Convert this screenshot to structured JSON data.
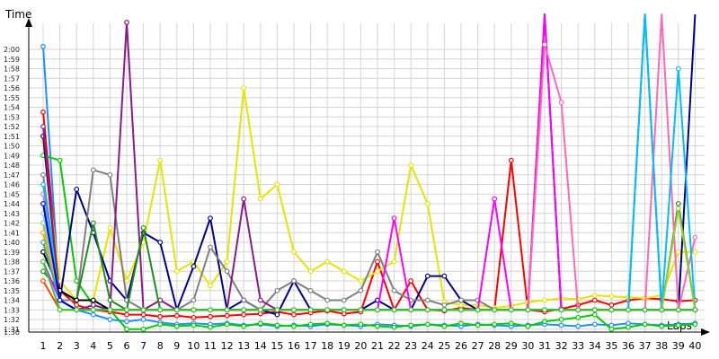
{
  "chart_data": {
    "type": "line",
    "title": "",
    "ylabel": "Time",
    "xlabel": "Laps",
    "y_tick_labels": [
      "1:30",
      "1:31",
      "1:32",
      "1:33",
      "1:34",
      "1:35",
      "1:36",
      "1:37",
      "1:38",
      "1:39",
      "1:40",
      "1:41",
      "1:42",
      "1:43",
      "1:44",
      "1:45",
      "1:46",
      "1:47",
      "1:48",
      "1:49",
      "1:50",
      "1:51",
      "1:52",
      "1:53",
      "1:54",
      "1:55",
      "1:56",
      "1:57",
      "1:58",
      "1:59",
      "2:00"
    ],
    "x_tick_labels": [
      "1",
      "2",
      "3",
      "4",
      "5",
      "6",
      "7",
      "8",
      "9",
      "10",
      "11",
      "12",
      "13",
      "14",
      "15",
      "16",
      "17",
      "18",
      "19",
      "20",
      "21",
      "22",
      "23",
      "24",
      "25",
      "26",
      "27",
      "28",
      "29",
      "30",
      "31",
      "32",
      "33",
      "34",
      "35",
      "36",
      "37",
      "38",
      "39",
      "40"
    ],
    "ylim": [
      90,
      123
    ],
    "xlim": [
      0.5,
      40.2
    ],
    "grid": true,
    "legend": "none",
    "series": [
      {
        "color": "#1e90ff",
        "values": [
          120.3,
          94,
          93,
          92.5,
          92,
          91.8,
          92,
          91.7,
          91.5,
          91.6,
          91.5,
          91.6,
          91.4,
          91.5,
          91.3,
          91.4,
          91.3,
          91.5,
          91.4,
          91.3,
          91.5,
          91.4,
          91.3,
          91.5,
          91.4,
          91.3,
          91.5,
          91.4,
          91.3,
          91.4,
          91.5,
          91.4,
          91.3,
          91.5,
          91.4,
          91.6,
          91.5,
          91.4,
          91.5,
          91.6
        ]
      },
      {
        "color": "#ff0000",
        "values": [
          113.5,
          95,
          93.5,
          93,
          92.8,
          92.5,
          92.5,
          92.3,
          92.4,
          92.2,
          92.3,
          92.4,
          92.5,
          92.6,
          92.8,
          92.5,
          92.7,
          92.9,
          92.6,
          92.8,
          98,
          93,
          96,
          93,
          92.9,
          93.2,
          93,
          93,
          108.5,
          93,
          92.8,
          93.1,
          93.5,
          94,
          93.5,
          94,
          94.2,
          94.1,
          93.9,
          94
        ]
      },
      {
        "color": "#e5e500",
        "values": [
          110.5,
          96,
          94,
          94,
          101.5,
          96,
          100,
          108.5,
          97,
          98,
          95.5,
          98,
          116,
          104.5,
          106,
          99,
          97,
          98,
          97,
          96,
          97,
          98,
          108,
          104,
          93.8,
          93.5,
          93.5,
          93.2,
          93.4,
          93.8,
          94,
          94.2,
          94.1,
          94.5,
          94.4,
          94.3,
          94.2,
          94.5,
          99,
          99
        ]
      },
      {
        "color": "#00cc00",
        "values": [
          109,
          108.5,
          96,
          93.5,
          93,
          91,
          91,
          91.5,
          91.3,
          91.4,
          91.2,
          91.5,
          91.3,
          91.6,
          91.4,
          91.3,
          91.5,
          91.6,
          91.4,
          91.5,
          91.3,
          91.2,
          91.4,
          91.5,
          91.3,
          91.6,
          91.4,
          91.5,
          91.6,
          91.3,
          91.8,
          92,
          92.2,
          92.5,
          91,
          91.2,
          91.5,
          91.3,
          91.4,
          91.5
        ]
      },
      {
        "color": "#00008b",
        "values": [
          111,
          94,
          105.5,
          101,
          96,
          94,
          101,
          100,
          93,
          97.5,
          102.5,
          93,
          94,
          93,
          92.5,
          96,
          93,
          93,
          93,
          93,
          94,
          93,
          93,
          96.5,
          96.5,
          94,
          93,
          93,
          93,
          93,
          124,
          93,
          93,
          93,
          93,
          93,
          93,
          93,
          93,
          124
        ]
      },
      {
        "color": "#808080",
        "values": [
          107,
          94,
          94,
          107.5,
          107,
          94,
          93,
          93,
          93,
          94,
          99.5,
          97,
          94,
          93,
          95,
          96,
          95,
          94,
          94,
          95,
          99,
          95,
          94,
          94,
          93.5,
          94,
          94,
          93,
          93,
          93,
          93,
          93,
          93,
          93,
          93,
          93,
          93,
          93,
          93,
          93
        ]
      },
      {
        "color": "#8b1a8b",
        "values": [
          112,
          94,
          93,
          93.5,
          93,
          122.8,
          93,
          94,
          93,
          93,
          93,
          93,
          104.5,
          94,
          93,
          93,
          93,
          93,
          93,
          93,
          93,
          93,
          93,
          93,
          93,
          93,
          93,
          93,
          93,
          93,
          93,
          93,
          93,
          93,
          93,
          93,
          93,
          93,
          93,
          93
        ]
      },
      {
        "color": "#228b22",
        "values": [
          97,
          95,
          94,
          102,
          94,
          93,
          101.5,
          93,
          93,
          93,
          93,
          93,
          93,
          93,
          93,
          93,
          93,
          93,
          93,
          93,
          93,
          93,
          93,
          93,
          93,
          93,
          93,
          93,
          93,
          93,
          93,
          93,
          93,
          93,
          93,
          93,
          124,
          93,
          104,
          93
        ]
      },
      {
        "color": "#ff00ff",
        "values": [
          98,
          94,
          93,
          93,
          93,
          93,
          93,
          93,
          93,
          93,
          93,
          93,
          93,
          93,
          93,
          93,
          93,
          93,
          93,
          93,
          93,
          102.5,
          93,
          93,
          93,
          93,
          93,
          104.5,
          93,
          93,
          124,
          93,
          93,
          93,
          93,
          93,
          93,
          93,
          93,
          93
        ]
      },
      {
        "color": "#ff69b4",
        "values": [
          105,
          94,
          93,
          93,
          93,
          93,
          93,
          93,
          93,
          93,
          93,
          93,
          93,
          93,
          93,
          93,
          93,
          93,
          93,
          93,
          93,
          93,
          93,
          93,
          93,
          93,
          93,
          93,
          93,
          93,
          120.5,
          114.5,
          93,
          93,
          93,
          93,
          93,
          124,
          93,
          100.5
        ]
      },
      {
        "color": "#00bfff",
        "values": [
          106,
          94,
          93,
          93,
          93,
          93,
          93,
          93,
          93,
          93,
          93,
          93,
          93,
          93,
          93,
          93,
          93,
          93,
          93,
          93,
          93,
          93,
          93,
          93,
          93,
          93,
          93,
          93,
          93,
          93,
          93,
          93,
          93,
          93,
          93,
          93,
          124,
          93,
          118,
          93
        ]
      },
      {
        "color": "#9acd32",
        "values": [
          102,
          94,
          93,
          93,
          93,
          93,
          93,
          93,
          93,
          93,
          93,
          93,
          93,
          93,
          93,
          93,
          93,
          93,
          93,
          93,
          93,
          93,
          93,
          93,
          93,
          93,
          93,
          93,
          93,
          93,
          93,
          93,
          93,
          93,
          93,
          93,
          93,
          93,
          103.5,
          93
        ]
      },
      {
        "color": "#87cefa",
        "values": [
          103,
          94,
          93,
          93,
          93,
          93,
          93,
          93,
          93,
          93,
          93,
          93,
          93,
          93,
          93,
          93,
          93,
          93,
          93,
          93,
          93,
          93,
          93,
          93,
          93,
          93,
          93,
          93,
          93,
          93,
          93,
          93,
          93,
          93,
          93,
          93,
          93,
          93,
          93,
          93
        ]
      },
      {
        "color": "#000000",
        "values": [
          99,
          95,
          94,
          94,
          93,
          93,
          93,
          93,
          93,
          93,
          93,
          93,
          93,
          93,
          93,
          93,
          93,
          93,
          93,
          93,
          93,
          93,
          93,
          93,
          93,
          93,
          93,
          93,
          93,
          93,
          93,
          93,
          93,
          93,
          93,
          93,
          93,
          93,
          93,
          93
        ]
      },
      {
        "color": "#ffa500",
        "values": [
          101,
          94,
          93,
          93,
          93,
          93,
          93,
          93,
          93,
          93,
          93,
          93,
          93,
          93,
          93,
          93,
          93,
          93,
          93,
          93,
          93,
          93,
          93,
          93,
          93,
          93,
          93,
          93,
          93,
          93,
          93,
          93,
          93,
          93,
          93,
          93,
          93,
          93,
          93,
          93
        ]
      },
      {
        "color": "#20b2aa",
        "values": [
          100,
          94,
          93,
          93,
          93,
          93,
          93,
          93,
          93,
          93,
          93,
          93,
          93,
          93,
          93,
          93,
          93,
          93,
          93,
          93,
          93,
          93,
          93,
          93,
          93,
          93,
          93,
          93,
          93,
          93,
          93,
          93,
          93,
          93,
          93,
          93,
          93,
          93,
          93,
          93
        ]
      },
      {
        "color": "#0000cd",
        "values": [
          104,
          94,
          93,
          93,
          93,
          93,
          93,
          93,
          93,
          93,
          93,
          93,
          93,
          93,
          93,
          93,
          93,
          93,
          93,
          93,
          93,
          93,
          93,
          93,
          93,
          93,
          93,
          93,
          93,
          93,
          93,
          93,
          93,
          93,
          93,
          93,
          93,
          93,
          93,
          93
        ]
      },
      {
        "color": "#ff4500",
        "values": [
          96,
          93,
          93,
          93,
          93,
          93,
          93,
          93,
          93,
          93,
          93,
          93,
          93,
          93,
          93,
          93,
          93,
          93,
          93,
          93,
          93,
          93,
          93,
          93,
          93,
          93,
          93,
          93,
          93,
          93,
          93,
          93,
          93,
          93,
          93,
          93,
          93,
          93,
          93,
          93
        ]
      },
      {
        "color": "#32cd32",
        "values": [
          98,
          93,
          93,
          93,
          93,
          93,
          93,
          93,
          93,
          93,
          93,
          93,
          93,
          93,
          93,
          93,
          93,
          93,
          93,
          93,
          93,
          93,
          93,
          93,
          93,
          93,
          93,
          93,
          93,
          93,
          93,
          93,
          93,
          93,
          93,
          93,
          93,
          93,
          93,
          93
        ]
      }
    ]
  }
}
